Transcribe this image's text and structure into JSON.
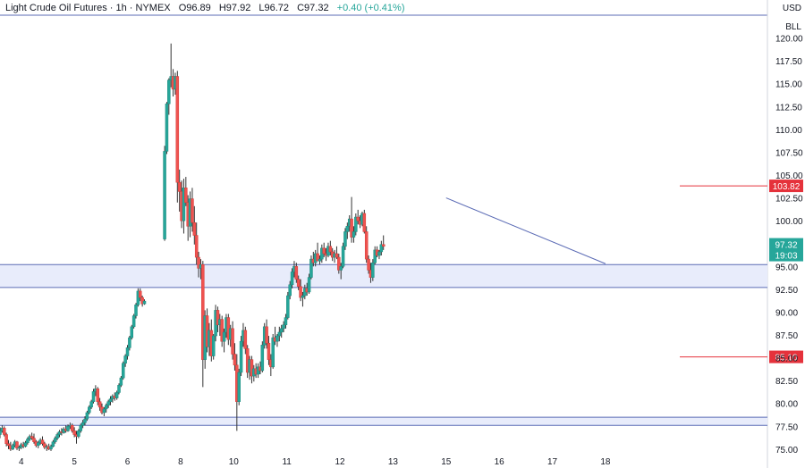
{
  "header": {
    "title": "Light Crude Oil Futures · 1h · NYMEX",
    "open": "O96.89",
    "high": "H97.92",
    "low": "L96.72",
    "close": "C97.32",
    "change": "+0.40 (+0.41%)"
  },
  "axis_units": {
    "currency": "USD",
    "unit": "BLL"
  },
  "chart_data": {
    "type": "candlestick",
    "ylim": [
      74.5,
      122.5
    ],
    "xlim": [
      3.6,
      18.05
    ],
    "y_ticks": [
      "75.00",
      "77.50",
      "80.00",
      "82.50",
      "85.00",
      "87.50",
      "90.00",
      "92.50",
      "95.00",
      "97.50",
      "100.00",
      "102.50",
      "105.00",
      "107.50",
      "110.00",
      "112.50",
      "115.00",
      "117.50",
      "120.00"
    ],
    "x_ticks": [
      {
        "label": "4",
        "x": 4
      },
      {
        "label": "5",
        "x": 5
      },
      {
        "label": "6",
        "x": 6
      },
      {
        "label": "8",
        "x": 7
      },
      {
        "label": "10",
        "x": 8
      },
      {
        "label": "11",
        "x": 9
      },
      {
        "label": "12",
        "x": 10
      },
      {
        "label": "13",
        "x": 11
      },
      {
        "label": "15",
        "x": 12
      },
      {
        "label": "16",
        "x": 13
      },
      {
        "label": "17",
        "x": 14
      },
      {
        "label": "18",
        "x": 15
      }
    ],
    "zones": [
      {
        "from": 92.7,
        "to": 95.2,
        "color": "#e8ecfb",
        "border": "#5b6bb5"
      },
      {
        "from": 77.6,
        "to": 78.5,
        "color": "#e8ecfb",
        "border": "#5b6bb5"
      }
    ],
    "levels": [
      {
        "value": 103.82,
        "label": "103.82",
        "color": "#e5323b"
      },
      {
        "value": 85.1,
        "label": "85.10",
        "color": "#e5323b"
      }
    ],
    "trendline": {
      "from": [
        12.0,
        102.5
      ],
      "to": [
        15.0,
        95.3
      ],
      "color": "#5b6bb5"
    },
    "last_price": {
      "value": 97.32,
      "label": "97.32",
      "countdown": "19:03",
      "color": "#26a69a"
    },
    "candles": [
      [
        3.6,
        76.6,
        77.4,
        76.2,
        77.0
      ],
      [
        3.64,
        77.0,
        77.6,
        76.8,
        77.3
      ],
      [
        3.68,
        77.3,
        77.5,
        76.4,
        76.6
      ],
      [
        3.72,
        76.6,
        76.8,
        75.3,
        75.6
      ],
      [
        3.76,
        75.6,
        76.0,
        75.0,
        75.4
      ],
      [
        3.8,
        75.4,
        75.8,
        74.8,
        75.0
      ],
      [
        3.84,
        75.0,
        75.6,
        74.9,
        75.4
      ],
      [
        3.88,
        75.4,
        76.0,
        75.2,
        75.8
      ],
      [
        3.92,
        75.8,
        75.9,
        74.9,
        75.1
      ],
      [
        3.96,
        75.1,
        75.4,
        74.8,
        75.2
      ],
      [
        4.0,
        75.2,
        75.7,
        75.0,
        75.5
      ],
      [
        4.04,
        75.5,
        75.8,
        75.1,
        75.3
      ],
      [
        4.08,
        75.3,
        75.9,
        75.2,
        75.7
      ],
      [
        4.12,
        75.7,
        76.3,
        75.5,
        76.1
      ],
      [
        4.16,
        76.1,
        76.6,
        75.9,
        76.4
      ],
      [
        4.2,
        76.4,
        76.8,
        76.0,
        76.2
      ],
      [
        4.24,
        76.2,
        76.7,
        75.6,
        75.8
      ],
      [
        4.28,
        75.8,
        76.0,
        75.2,
        75.4
      ],
      [
        4.32,
        75.4,
        75.9,
        75.1,
        75.7
      ],
      [
        4.36,
        75.7,
        76.2,
        75.5,
        76.0
      ],
      [
        4.4,
        76.0,
        76.4,
        75.4,
        75.6
      ],
      [
        4.44,
        75.6,
        75.8,
        75.0,
        75.2
      ],
      [
        4.48,
        75.2,
        75.5,
        74.8,
        75.3
      ],
      [
        4.52,
        75.3,
        75.6,
        74.9,
        75.0
      ],
      [
        4.56,
        75.0,
        75.5,
        74.8,
        75.3
      ],
      [
        4.6,
        75.3,
        76.0,
        75.2,
        75.8
      ],
      [
        4.64,
        75.8,
        76.4,
        75.6,
        76.2
      ],
      [
        4.68,
        76.2,
        76.8,
        76.0,
        76.6
      ],
      [
        4.72,
        76.6,
        77.1,
        76.3,
        76.9
      ],
      [
        4.76,
        76.9,
        77.3,
        76.5,
        76.8
      ],
      [
        4.8,
        76.8,
        77.4,
        76.7,
        77.2
      ],
      [
        4.84,
        77.2,
        77.6,
        76.8,
        77.0
      ],
      [
        4.88,
        77.0,
        77.7,
        76.9,
        77.5
      ],
      [
        4.92,
        77.5,
        77.9,
        77.2,
        77.6
      ],
      [
        4.96,
        77.6,
        77.8,
        76.8,
        77.0
      ],
      [
        5.0,
        77.0,
        77.4,
        76.3,
        76.6
      ],
      [
        5.04,
        76.6,
        77.0,
        75.6,
        76.4
      ],
      [
        5.08,
        76.4,
        77.2,
        76.2,
        77.0
      ],
      [
        5.12,
        77.0,
        77.8,
        76.8,
        77.6
      ],
      [
        5.16,
        77.6,
        78.2,
        77.3,
        77.9
      ],
      [
        5.2,
        77.9,
        78.6,
        77.6,
        78.3
      ],
      [
        5.24,
        78.3,
        79.2,
        78.1,
        79.0
      ],
      [
        5.28,
        79.0,
        79.8,
        78.8,
        79.6
      ],
      [
        5.32,
        79.6,
        80.4,
        79.4,
        80.2
      ],
      [
        5.36,
        80.2,
        81.6,
        80.0,
        81.3
      ],
      [
        5.4,
        81.3,
        82.0,
        80.8,
        81.6
      ],
      [
        5.44,
        81.6,
        81.8,
        79.8,
        80.2
      ],
      [
        5.48,
        80.2,
        80.6,
        79.2,
        79.6
      ],
      [
        5.52,
        79.6,
        80.0,
        78.8,
        79.0
      ],
      [
        5.56,
        79.0,
        79.6,
        78.6,
        79.4
      ],
      [
        5.6,
        79.4,
        80.0,
        79.0,
        79.8
      ],
      [
        5.64,
        79.8,
        80.4,
        79.5,
        80.2
      ],
      [
        5.68,
        80.2,
        80.8,
        79.8,
        80.5
      ],
      [
        5.72,
        80.5,
        81.0,
        80.1,
        80.8
      ],
      [
        5.76,
        80.8,
        81.2,
        80.3,
        80.6
      ],
      [
        5.8,
        80.6,
        81.4,
        80.4,
        81.2
      ],
      [
        5.84,
        81.2,
        82.2,
        81.0,
        82.0
      ],
      [
        5.88,
        82.0,
        83.0,
        81.8,
        82.8
      ],
      [
        5.92,
        82.8,
        84.6,
        82.6,
        84.4
      ],
      [
        5.96,
        84.4,
        85.4,
        84.0,
        85.2
      ],
      [
        6.0,
        85.2,
        86.4,
        84.8,
        86.1
      ],
      [
        6.04,
        86.1,
        87.4,
        85.8,
        87.2
      ],
      [
        6.08,
        87.2,
        88.6,
        87.0,
        88.4
      ],
      [
        6.12,
        88.4,
        89.8,
        88.2,
        89.6
      ],
      [
        6.16,
        89.6,
        91.0,
        89.3,
        90.8
      ],
      [
        6.2,
        90.8,
        92.6,
        90.6,
        92.3
      ],
      [
        6.24,
        92.3,
        92.6,
        91.2,
        91.6
      ],
      [
        6.28,
        91.6,
        91.8,
        90.6,
        90.9
      ],
      [
        6.32,
        90.9,
        91.4,
        90.8,
        91.2
      ],
      [
        6.7,
        98.0,
        108.2,
        97.8,
        107.6
      ],
      [
        6.74,
        107.6,
        113.0,
        107.3,
        112.8
      ],
      [
        6.78,
        112.8,
        115.6,
        111.6,
        115.4
      ],
      [
        6.82,
        115.4,
        119.4,
        114.6,
        115.8
      ],
      [
        6.86,
        115.8,
        116.6,
        113.6,
        114.4
      ],
      [
        6.9,
        114.4,
        116.2,
        113.8,
        115.8
      ],
      [
        6.94,
        115.8,
        116.4,
        102.0,
        104.2
      ],
      [
        6.98,
        104.2,
        105.6,
        101.0,
        103.2
      ],
      [
        7.02,
        103.2,
        104.4,
        99.2,
        100.0
      ],
      [
        7.06,
        100.0,
        104.6,
        98.6,
        103.6
      ],
      [
        7.1,
        103.6,
        104.8,
        101.6,
        102.0
      ],
      [
        7.14,
        102.0,
        102.8,
        97.8,
        99.4
      ],
      [
        7.18,
        99.4,
        103.2,
        98.2,
        102.4
      ],
      [
        7.22,
        102.4,
        103.6,
        98.8,
        99.8
      ],
      [
        7.26,
        99.8,
        101.6,
        97.4,
        98.4
      ],
      [
        7.3,
        98.4,
        99.8,
        95.2,
        96.0
      ],
      [
        7.34,
        96.0,
        96.6,
        93.8,
        94.8
      ],
      [
        7.38,
        94.8,
        95.8,
        93.6,
        95.2
      ],
      [
        7.42,
        95.2,
        95.6,
        81.8,
        84.8
      ],
      [
        7.46,
        84.8,
        90.2,
        83.8,
        89.6
      ],
      [
        7.5,
        89.6,
        90.4,
        85.6,
        86.2
      ],
      [
        7.54,
        86.2,
        88.8,
        85.2,
        88.0
      ],
      [
        7.58,
        88.0,
        89.2,
        84.6,
        85.2
      ],
      [
        7.62,
        85.2,
        87.6,
        84.8,
        87.4
      ],
      [
        7.66,
        87.4,
        90.8,
        86.8,
        90.2
      ],
      [
        7.7,
        90.2,
        90.6,
        87.8,
        88.6
      ],
      [
        7.74,
        88.6,
        89.8,
        87.4,
        89.2
      ],
      [
        7.78,
        89.2,
        89.6,
        86.2,
        86.8
      ],
      [
        7.82,
        86.8,
        88.2,
        85.6,
        87.8
      ],
      [
        7.86,
        87.8,
        89.8,
        87.2,
        89.4
      ],
      [
        7.9,
        89.4,
        89.8,
        86.4,
        87.0
      ],
      [
        7.94,
        87.0,
        88.6,
        86.2,
        88.2
      ],
      [
        7.98,
        88.2,
        89.0,
        84.8,
        85.4
      ],
      [
        8.02,
        85.4,
        86.6,
        83.6,
        84.2
      ],
      [
        8.06,
        84.2,
        85.4,
        77.0,
        80.2
      ],
      [
        8.1,
        80.2,
        83.8,
        79.8,
        83.4
      ],
      [
        8.14,
        83.4,
        87.4,
        83.0,
        86.8
      ],
      [
        8.18,
        86.8,
        88.8,
        86.2,
        88.0
      ],
      [
        8.22,
        88.0,
        88.4,
        85.4,
        86.0
      ],
      [
        8.26,
        86.0,
        86.4,
        82.8,
        83.4
      ],
      [
        8.3,
        83.4,
        85.2,
        82.6,
        84.8
      ],
      [
        8.34,
        84.8,
        85.2,
        82.2,
        83.0
      ],
      [
        8.38,
        83.0,
        84.2,
        82.4,
        83.8
      ],
      [
        8.42,
        83.8,
        84.4,
        82.8,
        83.2
      ],
      [
        8.46,
        83.2,
        84.4,
        82.8,
        84.0
      ],
      [
        8.5,
        84.0,
        84.6,
        83.2,
        83.6
      ],
      [
        8.54,
        83.6,
        86.8,
        83.4,
        86.4
      ],
      [
        8.58,
        86.4,
        88.8,
        86.0,
        88.4
      ],
      [
        8.62,
        88.4,
        89.2,
        86.0,
        86.6
      ],
      [
        8.66,
        86.6,
        87.4,
        84.2,
        84.8
      ],
      [
        8.7,
        84.8,
        85.4,
        83.0,
        84.0
      ],
      [
        8.74,
        84.0,
        87.6,
        83.8,
        87.2
      ],
      [
        8.78,
        87.2,
        88.4,
        86.4,
        86.8
      ],
      [
        8.82,
        86.8,
        87.6,
        86.2,
        87.4
      ],
      [
        8.86,
        87.4,
        88.4,
        86.8,
        87.8
      ],
      [
        8.9,
        87.8,
        88.6,
        87.2,
        88.2
      ],
      [
        8.94,
        88.2,
        89.0,
        87.8,
        88.6
      ],
      [
        8.98,
        88.6,
        89.8,
        88.2,
        89.4
      ],
      [
        9.02,
        89.4,
        92.2,
        89.2,
        91.8
      ],
      [
        9.06,
        91.8,
        93.4,
        91.4,
        93.0
      ],
      [
        9.1,
        93.0,
        94.8,
        92.6,
        94.4
      ],
      [
        9.14,
        94.4,
        95.6,
        93.8,
        95.0
      ],
      [
        9.18,
        95.0,
        95.4,
        93.2,
        93.6
      ],
      [
        9.22,
        93.6,
        94.0,
        92.4,
        92.8
      ],
      [
        9.26,
        92.8,
        93.6,
        91.2,
        91.6
      ],
      [
        9.3,
        91.6,
        92.2,
        90.6,
        91.8
      ],
      [
        9.34,
        91.8,
        93.0,
        91.4,
        92.6
      ],
      [
        9.38,
        92.6,
        93.2,
        91.8,
        92.2
      ],
      [
        9.42,
        92.2,
        94.2,
        92.0,
        93.8
      ],
      [
        9.46,
        93.8,
        96.2,
        93.6,
        95.8
      ],
      [
        9.5,
        95.8,
        96.6,
        95.0,
        95.4
      ],
      [
        9.54,
        95.4,
        96.8,
        95.0,
        96.4
      ],
      [
        9.58,
        96.4,
        97.6,
        95.8,
        95.6
      ],
      [
        9.62,
        95.6,
        96.2,
        95.2,
        95.8
      ],
      [
        9.66,
        95.8,
        97.4,
        95.4,
        97.0
      ],
      [
        9.7,
        97.0,
        97.6,
        96.0,
        96.4
      ],
      [
        9.74,
        96.4,
        97.0,
        95.6,
        96.2
      ],
      [
        9.78,
        96.2,
        97.6,
        96.0,
        97.2
      ],
      [
        9.82,
        97.2,
        97.8,
        96.2,
        96.6
      ],
      [
        9.86,
        96.6,
        97.0,
        95.6,
        96.0
      ],
      [
        9.9,
        96.0,
        96.8,
        95.4,
        96.4
      ],
      [
        9.94,
        96.4,
        97.2,
        95.8,
        96.0
      ],
      [
        9.98,
        96.0,
        96.4,
        94.2,
        94.6
      ],
      [
        10.02,
        94.6,
        95.4,
        93.6,
        95.0
      ],
      [
        10.06,
        95.0,
        97.6,
        94.8,
        97.2
      ],
      [
        10.1,
        97.2,
        99.2,
        96.8,
        98.8
      ],
      [
        10.14,
        98.8,
        99.8,
        98.0,
        99.4
      ],
      [
        10.18,
        99.4,
        100.6,
        98.8,
        100.2
      ],
      [
        10.22,
        100.2,
        102.6,
        97.6,
        98.2
      ],
      [
        10.26,
        98.2,
        99.4,
        97.6,
        98.8
      ],
      [
        10.3,
        98.8,
        100.8,
        98.4,
        100.4
      ],
      [
        10.34,
        100.4,
        101.2,
        99.6,
        100.0
      ],
      [
        10.38,
        100.0,
        100.6,
        99.2,
        99.6
      ],
      [
        10.42,
        99.6,
        101.0,
        99.4,
        100.8
      ],
      [
        10.46,
        100.8,
        101.2,
        98.6,
        98.8
      ],
      [
        10.5,
        98.8,
        99.4,
        95.4,
        95.8
      ],
      [
        10.54,
        95.8,
        96.2,
        94.2,
        94.6
      ],
      [
        10.58,
        94.6,
        95.4,
        93.2,
        93.8
      ],
      [
        10.62,
        93.8,
        95.8,
        93.4,
        95.4
      ],
      [
        10.66,
        95.4,
        97.2,
        95.2,
        96.8
      ],
      [
        10.7,
        96.8,
        97.2,
        96.0,
        96.2
      ],
      [
        10.74,
        96.2,
        96.8,
        95.8,
        96.6
      ],
      [
        10.78,
        96.6,
        97.8,
        96.2,
        97.4
      ],
      [
        10.82,
        97.4,
        98.4,
        96.8,
        97.2
      ]
    ]
  }
}
